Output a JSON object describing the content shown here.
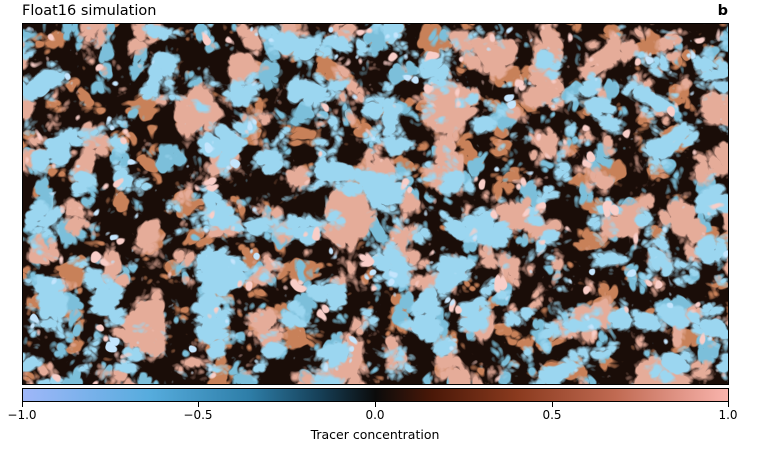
{
  "figure": {
    "title": "Float16 simulation",
    "panel_letter": "b"
  },
  "colorbar": {
    "label": "Tracer concentration",
    "range": [
      -1.0,
      1.0
    ],
    "ticks": [
      "−1.0",
      "−0.5",
      "0.0",
      "0.5",
      "1.0"
    ],
    "colors": {
      "min": "#9fb7f9",
      "neg_mid": "#56acdd",
      "zero": "#0b0b0b",
      "pos_mid": "#8a3a1e",
      "max": "#f9b4ad"
    }
  }
}
